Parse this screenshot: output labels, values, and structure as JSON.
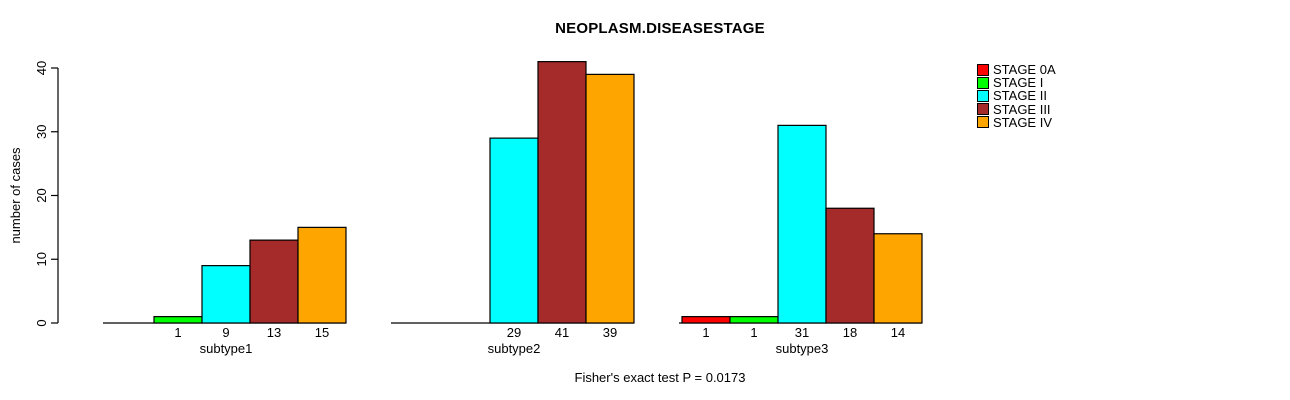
{
  "chart_data": {
    "type": "bar",
    "grouped": true,
    "title": "NEOPLASM.DISEASESTAGE",
    "ylabel": "number of cases",
    "xlabel": "",
    "ylim": [
      0,
      40
    ],
    "yticks": [
      0,
      10,
      20,
      30,
      40
    ],
    "grid": false,
    "legend_position": "right",
    "show_zero_value_labels": false,
    "categories": [
      "subtype1",
      "subtype2",
      "subtype3"
    ],
    "series": [
      {
        "name": "STAGE 0A",
        "color": "#FF0000",
        "values": [
          0,
          0,
          1
        ]
      },
      {
        "name": "STAGE I",
        "color": "#00FF00",
        "values": [
          1,
          0,
          1
        ]
      },
      {
        "name": "STAGE II",
        "color": "#00FFFF",
        "values": [
          9,
          29,
          31
        ]
      },
      {
        "name": "STAGE III",
        "color": "#A52A2A",
        "values": [
          13,
          41,
          18
        ]
      },
      {
        "name": "STAGE IV",
        "color": "#FFA500",
        "values": [
          15,
          39,
          14
        ]
      }
    ],
    "annotation": "Fisher's exact test P = 0.0173"
  }
}
